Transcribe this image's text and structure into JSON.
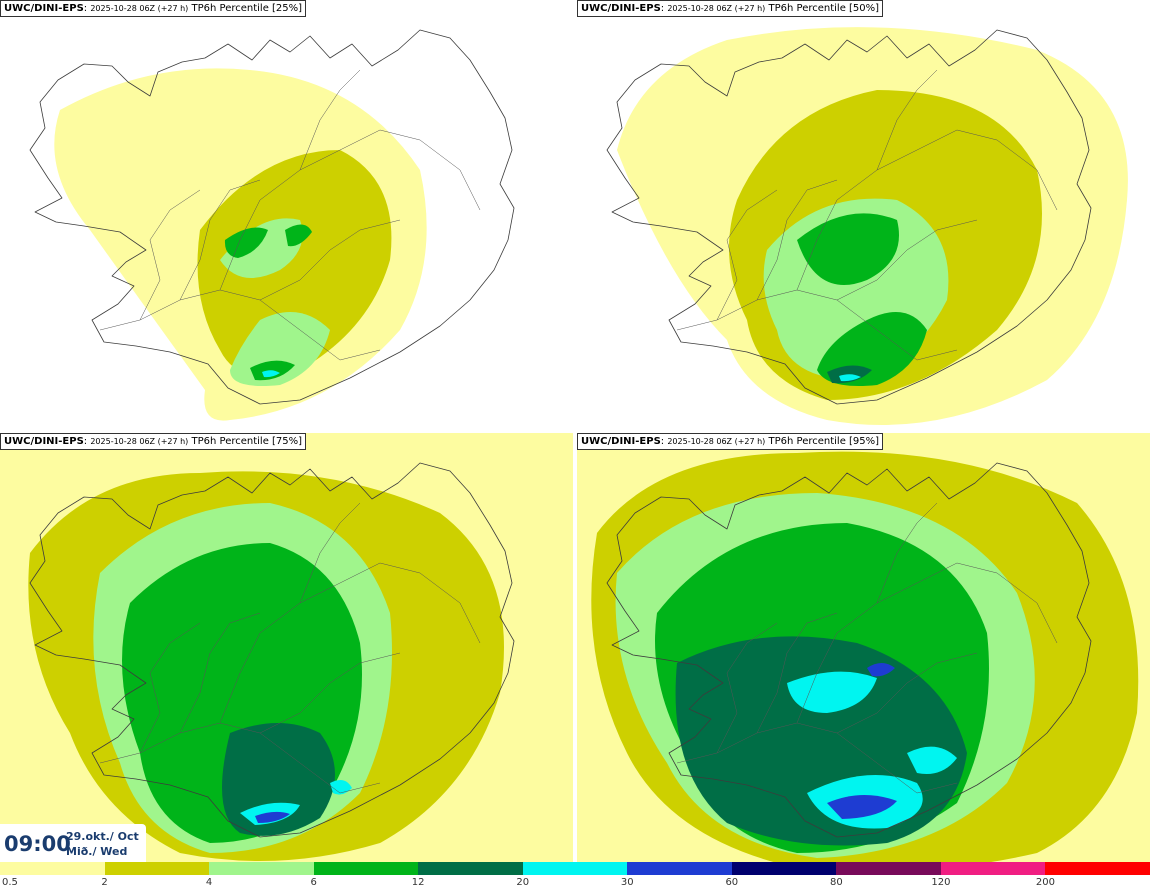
{
  "panels": [
    {
      "source": "UWC/DINI-EPS",
      "run": "2025-10-28 06Z (+27 h)",
      "param": "TP6h Percentile [25%]",
      "level": 0
    },
    {
      "source": "UWC/DINI-EPS",
      "run": "2025-10-28 06Z (+27 h)",
      "param": "TP6h Percentile [50%]",
      "level": 1
    },
    {
      "source": "UWC/DINI-EPS",
      "run": "2025-10-28 06Z (+27 h)",
      "param": "TP6h Percentile [75%]",
      "level": 2
    },
    {
      "source": "UWC/DINI-EPS",
      "run": "2025-10-28 06Z (+27 h)",
      "param": "TP6h Percentile [95%]",
      "level": 3
    }
  ],
  "time": {
    "clock": "09:00",
    "date_line1": "29.okt./ Oct",
    "date_line2": "Mið./ Wed"
  },
  "colorbar": {
    "ticks": [
      "0.5",
      "2",
      "4",
      "6",
      "12",
      "20",
      "30",
      "60",
      "80",
      "120",
      "200"
    ],
    "colors": [
      "#fdfca0",
      "#cdd000",
      "#a0f58c",
      "#00b419",
      "#006e46",
      "#00f5f0",
      "#1e3cd2",
      "#00006e",
      "#780a5a",
      "#f01e82",
      "#ff0000"
    ]
  }
}
